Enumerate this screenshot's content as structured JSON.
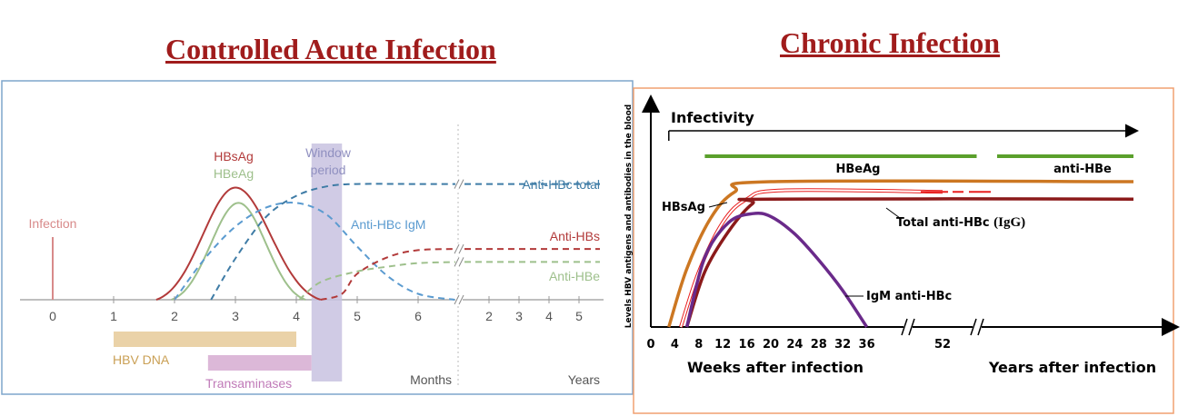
{
  "chart_data": [
    {
      "type": "line",
      "title": "Controlled Acute Infection",
      "x_axis": {
        "months_ticks": [
          0,
          1,
          2,
          3,
          4,
          5,
          6
        ],
        "years_ticks": [
          2,
          3,
          4,
          5
        ],
        "months_label": "Months",
        "years_label": "Years"
      },
      "event": {
        "label": "Infection",
        "x": 0
      },
      "window_period": {
        "label_line1": "Window",
        "label_line2": "period",
        "start": 4.25,
        "end": 4.75
      },
      "series": [
        {
          "name": "HBsAg",
          "color": "#b23a3a",
          "style": "solid",
          "start": 1.7,
          "peak": 3.0,
          "peak_level": 0.95,
          "end": 4.4
        },
        {
          "name": "HBeAg",
          "color": "#9ec08c",
          "style": "solid",
          "start": 1.95,
          "peak": 3.05,
          "peak_level": 0.82,
          "end": 4.15
        },
        {
          "name": "Anti-HBc IgM",
          "color": "#5b9bd0",
          "style": "dashed",
          "points": [
            [
              2.0,
              0.0
            ],
            [
              2.5,
              0.35
            ],
            [
              3.0,
              0.62
            ],
            [
              3.5,
              0.78
            ],
            [
              4.0,
              0.82
            ],
            [
              4.5,
              0.72
            ],
            [
              5.0,
              0.45
            ],
            [
              5.5,
              0.2
            ],
            [
              6.0,
              0.05
            ],
            [
              6.6,
              0.0
            ]
          ]
        },
        {
          "name": "Anti-HBc total",
          "color": "#3f7ca6",
          "style": "dashed",
          "points": [
            [
              2.6,
              0.0
            ],
            [
              3.0,
              0.35
            ],
            [
              3.5,
              0.7
            ],
            [
              4.0,
              0.88
            ],
            [
              4.5,
              0.96
            ],
            [
              5.0,
              0.98
            ],
            [
              6.0,
              0.98
            ],
            [
              6.7,
              0.98
            ]
          ],
          "continues": 0.98
        },
        {
          "name": "Anti-HBs",
          "color": "#b23a3a",
          "style": "dashed",
          "points": [
            [
              4.4,
              0.0
            ],
            [
              4.75,
              0.05
            ],
            [
              5.0,
              0.22
            ],
            [
              5.5,
              0.36
            ],
            [
              6.0,
              0.42
            ],
            [
              6.7,
              0.43
            ]
          ],
          "continues": 0.43
        },
        {
          "name": "Anti-HBe",
          "color": "#9ec08c",
          "style": "dashed",
          "points": [
            [
              4.05,
              0.0
            ],
            [
              4.4,
              0.15
            ],
            [
              5.0,
              0.24
            ],
            [
              5.5,
              0.28
            ],
            [
              6.0,
              0.31
            ],
            [
              6.7,
              0.32
            ]
          ],
          "continues": 0.32
        }
      ],
      "bars": [
        {
          "name": "HBV DNA",
          "start": 1.0,
          "end": 4.0,
          "color": "#ead2a8",
          "text_color": "#caa055"
        },
        {
          "name": "Transaminases",
          "start": 2.55,
          "end": 4.25,
          "color": "#dcb8d8",
          "text_color": "#c07ab8"
        }
      ]
    },
    {
      "type": "line",
      "title": "Chronic Infection",
      "ylabel": "Levels HBV antigens and antibodies in the blood",
      "xlabel_weeks": "Weeks after infection",
      "xlabel_years": "Years after infection",
      "x_ticks": [
        "0",
        "4",
        "8",
        "12",
        "16",
        "20",
        "24",
        "28",
        "32",
        "36",
        "52"
      ],
      "infectivity": {
        "label": "Infectivity",
        "from_week": 3
      },
      "markers": [
        {
          "name": "HBeAg",
          "start": 9,
          "end": 57,
          "color": "#5aa02c"
        },
        {
          "name": "anti-HBe",
          "start": 60,
          "end": 80,
          "color": "#5aa02c"
        }
      ],
      "series": [
        {
          "name": "HBsAg",
          "color": "#cc7722",
          "points": [
            [
              3,
              0.0
            ],
            [
              6,
              0.4
            ],
            [
              10,
              0.75
            ],
            [
              14,
              0.93
            ],
            [
              20,
              1.0
            ],
            [
              80,
              1.0
            ]
          ]
        },
        {
          "name": "HBsAg",
          "color": "#e81e1e",
          "style": "outline",
          "points": [
            [
              5,
              0.0
            ],
            [
              8,
              0.38
            ],
            [
              12,
              0.72
            ],
            [
              16,
              0.88
            ],
            [
              22,
              0.94
            ],
            [
              52,
              0.93
            ]
          ]
        },
        {
          "name": "Total anti-HBc (IgG)",
          "color": "#8b1a1a",
          "points": [
            [
              6,
              0.0
            ],
            [
              9,
              0.38
            ],
            [
              13,
              0.66
            ],
            [
              17,
              0.85
            ],
            [
              20,
              0.88
            ],
            [
              80,
              0.88
            ]
          ]
        },
        {
          "name": "IgM anti-HBc",
          "color": "#6a2a8a",
          "points": [
            [
              6,
              0.0
            ],
            [
              9,
              0.48
            ],
            [
              13,
              0.72
            ],
            [
              17,
              0.78
            ],
            [
              20,
              0.76
            ],
            [
              24,
              0.64
            ],
            [
              28,
              0.46
            ],
            [
              32,
              0.25
            ],
            [
              36,
              0.0
            ]
          ]
        }
      ],
      "labels": {
        "hbsag": "HBsAg",
        "total_anti_hbc_pre": "Total anti-HBc ",
        "total_anti_hbc_igg": "(IgG)",
        "igm_anti_hbc": "IgM anti-HBc"
      }
    }
  ]
}
